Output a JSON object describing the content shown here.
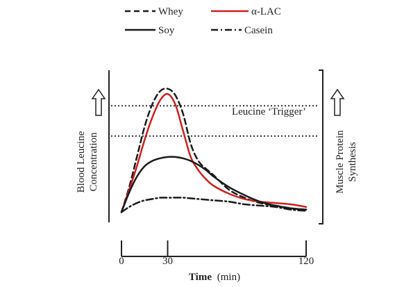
{
  "chart_data": {
    "type": "line",
    "xlabel": "Time",
    "xlabel_unit": "(min)",
    "ylabel_left": [
      "Blood Leucine",
      "Concentration"
    ],
    "ylabel_right": [
      "Muscle Protein",
      "Synthesis"
    ],
    "trigger_label": "Leucine ‘Trigger’",
    "xlim": [
      0,
      120
    ],
    "ylim": [
      0,
      100
    ],
    "x_ticks": [
      0,
      30,
      120
    ],
    "trigger_band": [
      61,
      84
    ],
    "legend_placement": "top",
    "series": [
      {
        "name": "Whey",
        "style": "dashed",
        "color": "#1a1a1a",
        "x": [
          0,
          5,
          10,
          15,
          20,
          25,
          30,
          35,
          40,
          45,
          50,
          55,
          60,
          70,
          80,
          90,
          100,
          110,
          120
        ],
        "y": [
          3,
          22,
          45,
          68,
          85,
          95,
          97,
          92,
          78,
          55,
          42,
          36,
          31,
          20,
          14,
          10,
          8,
          6,
          5
        ]
      },
      {
        "name": "α-LAC",
        "style": "solid",
        "color": "#cc1f1f",
        "x": [
          0,
          5,
          10,
          15,
          20,
          25,
          30,
          35,
          40,
          45,
          50,
          55,
          60,
          70,
          80,
          90,
          100,
          110,
          120
        ],
        "y": [
          3,
          20,
          38,
          58,
          75,
          88,
          93,
          85,
          65,
          45,
          35,
          28,
          23,
          17,
          13,
          11,
          10,
          9,
          7
        ]
      },
      {
        "name": "Soy",
        "style": "solid",
        "color": "#1a1a1a",
        "x": [
          0,
          5,
          10,
          15,
          20,
          25,
          30,
          35,
          40,
          45,
          50,
          55,
          60,
          70,
          80,
          90,
          100,
          110,
          120
        ],
        "y": [
          3,
          18,
          30,
          38,
          42,
          44,
          45,
          45,
          44,
          42,
          39,
          35,
          30,
          22,
          16,
          11,
          8,
          6,
          5
        ]
      },
      {
        "name": "Casein",
        "style": "dash-dot",
        "color": "#1a1a1a",
        "x": [
          0,
          5,
          10,
          15,
          20,
          25,
          30,
          40,
          50,
          60,
          70,
          80,
          90,
          100,
          110,
          120
        ],
        "y": [
          3,
          7,
          10,
          12,
          13,
          14,
          14,
          14,
          13,
          12,
          11,
          9,
          8,
          7,
          5,
          4
        ]
      }
    ]
  }
}
